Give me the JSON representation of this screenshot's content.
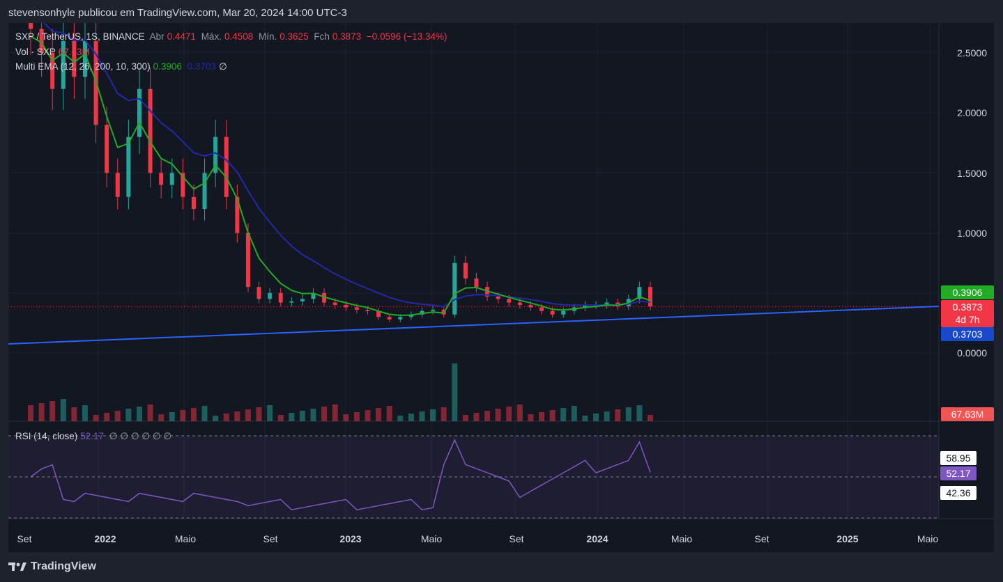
{
  "header": {
    "publisher_line": "stevensonhyle publicou em TradingView.com, Mar 20, 2024 14:00 UTC-3"
  },
  "legend": {
    "symbol": "SXP / TetherUS, 1S, BINANCE",
    "open_label": "Abr",
    "open": "0.4471",
    "high_label": "Máx.",
    "high": "0.4508",
    "low_label": "Mín.",
    "low": "0.3625",
    "close_label": "Fch",
    "close": "0.3873",
    "change": "−0.0596 (−13.34%)",
    "vol_label": "Vol · SXP",
    "vol_value": "67.63M",
    "ema_label": "Multi EMA (12, 26, 200, 10, 300)",
    "ema1": "0.3906",
    "ema2": "0.3703",
    "ema_empty": "∅",
    "rsi_label": "RSI (14, close)",
    "rsi_value": "52.17",
    "rsi_empty": "∅ ∅ ∅ ∅ ∅ ∅"
  },
  "price_axis": {
    "ticks": [
      "2.5000",
      "2.0000",
      "1.5000",
      "1.0000",
      "0.0000"
    ],
    "labels": {
      "ema_fast": "0.3906",
      "last_price": "0.3873",
      "countdown": "4d 7h",
      "ema_slow": "0.3703",
      "volume": "67.63M"
    }
  },
  "rsi_axis": {
    "labels": [
      "58.95",
      "52.17",
      "42.36"
    ]
  },
  "time_axis": {
    "ticks": [
      {
        "label": "Set",
        "bold": false
      },
      {
        "label": "2022",
        "bold": true
      },
      {
        "label": "Maio",
        "bold": false
      },
      {
        "label": "Set",
        "bold": false
      },
      {
        "label": "2023",
        "bold": true
      },
      {
        "label": "Maio",
        "bold": false
      },
      {
        "label": "Set",
        "bold": false
      },
      {
        "label": "2024",
        "bold": true
      },
      {
        "label": "Maio",
        "bold": false
      },
      {
        "label": "Set",
        "bold": false
      },
      {
        "label": "2025",
        "bold": true
      },
      {
        "label": "Maio",
        "bold": false
      }
    ]
  },
  "colors": {
    "up": "#26a69a",
    "down": "#f23645",
    "ema_fast": "#22ab24",
    "ema_slow": "#2229a8",
    "trendline": "#2962ff",
    "rsi_line": "#7e57c2",
    "background": "#131722"
  },
  "footer": {
    "brand": "TradingView"
  },
  "chart_data": {
    "type": "candlestick",
    "title": "SXP / TetherUS, 1S, BINANCE",
    "timeframe": "weekly",
    "price_ticks": [
      2.5,
      2.0,
      1.5,
      1.0,
      0.0
    ],
    "last_price": 0.3873,
    "series": [
      {
        "name": "SXP / TetherUS",
        "close_path": [
          2.7,
          2.5,
          2.2,
          2.6,
          2.3,
          2.6,
          1.9,
          1.5,
          1.3,
          1.8,
          2.2,
          1.5,
          1.4,
          1.5,
          1.3,
          1.2,
          1.5,
          1.8,
          1.3,
          1.0,
          0.55,
          0.45,
          0.5,
          0.42,
          0.43,
          0.45,
          0.5,
          0.42,
          0.4,
          0.38,
          0.36,
          0.35,
          0.3,
          0.28,
          0.3,
          0.32,
          0.35,
          0.36,
          0.32,
          0.75,
          0.62,
          0.55,
          0.47,
          0.45,
          0.42,
          0.4,
          0.38,
          0.35,
          0.32,
          0.35,
          0.38,
          0.4,
          0.4,
          0.42,
          0.39,
          0.45,
          0.55,
          0.3873
        ]
      },
      {
        "name": "EMA 12",
        "last": 0.3906
      },
      {
        "name": "EMA 26",
        "last": 0.3703
      },
      {
        "name": "RSI (14, close)",
        "last": 52.17,
        "band_upper": 70,
        "band_lower": 30,
        "visible_levels": [
          58.95,
          52.17,
          42.36
        ]
      }
    ],
    "volume_last": "67.63M"
  }
}
